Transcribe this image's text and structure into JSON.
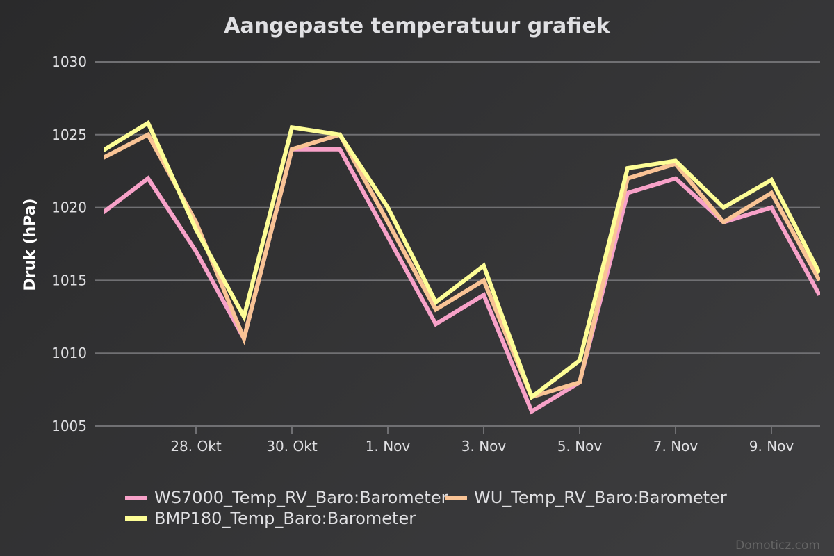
{
  "chart_data": {
    "type": "line",
    "title": "Aangepaste temperatuur grafiek",
    "ylabel": "Druk (hPa)",
    "xlabel": "",
    "ylim": [
      1005,
      1030
    ],
    "yticks": [
      1005,
      1010,
      1015,
      1020,
      1025,
      1030
    ],
    "x": [
      "26. Okt",
      "27. Okt",
      "28. Okt",
      "29. Okt",
      "30. Okt",
      "31. Okt",
      "1. Nov",
      "2. Nov",
      "3. Nov",
      "4. Nov",
      "5. Nov",
      "6. Nov",
      "7. Nov",
      "8. Nov",
      "9. Nov",
      "10. Nov"
    ],
    "xtick_labels": [
      "28. Okt",
      "30. Okt",
      "1. Nov",
      "3. Nov",
      "5. Nov",
      "7. Nov",
      "9. Nov"
    ],
    "grid": true,
    "legend_position": "bottom",
    "series": [
      {
        "name": "WS7000_Temp_RV_Baro:Barometer",
        "color": "#f7a1c8",
        "values": [
          1019.5,
          1022,
          1017,
          1011,
          1024,
          1024,
          1018,
          1012,
          1014,
          1006,
          1008,
          1021,
          1022,
          1019,
          1020,
          1014
        ]
      },
      {
        "name": "WU_Temp_RV_Baro:Barometer",
        "color": "#f9c395",
        "values": [
          1023.3,
          1025,
          1019,
          1011,
          1024,
          1025,
          1019,
          1013,
          1015,
          1007,
          1008,
          1022,
          1023,
          1019,
          1021,
          1015
        ]
      },
      {
        "name": "BMP180_Temp_Baro:Barometer",
        "color": "#fdfd96",
        "values": [
          1023.8,
          1025.8,
          1018.5,
          1012.5,
          1025.5,
          1025,
          1020,
          1013.5,
          1016,
          1007,
          1009.5,
          1022.7,
          1023.2,
          1020,
          1021.9,
          1015.5
        ]
      }
    ]
  },
  "credit": "Domoticz.com"
}
